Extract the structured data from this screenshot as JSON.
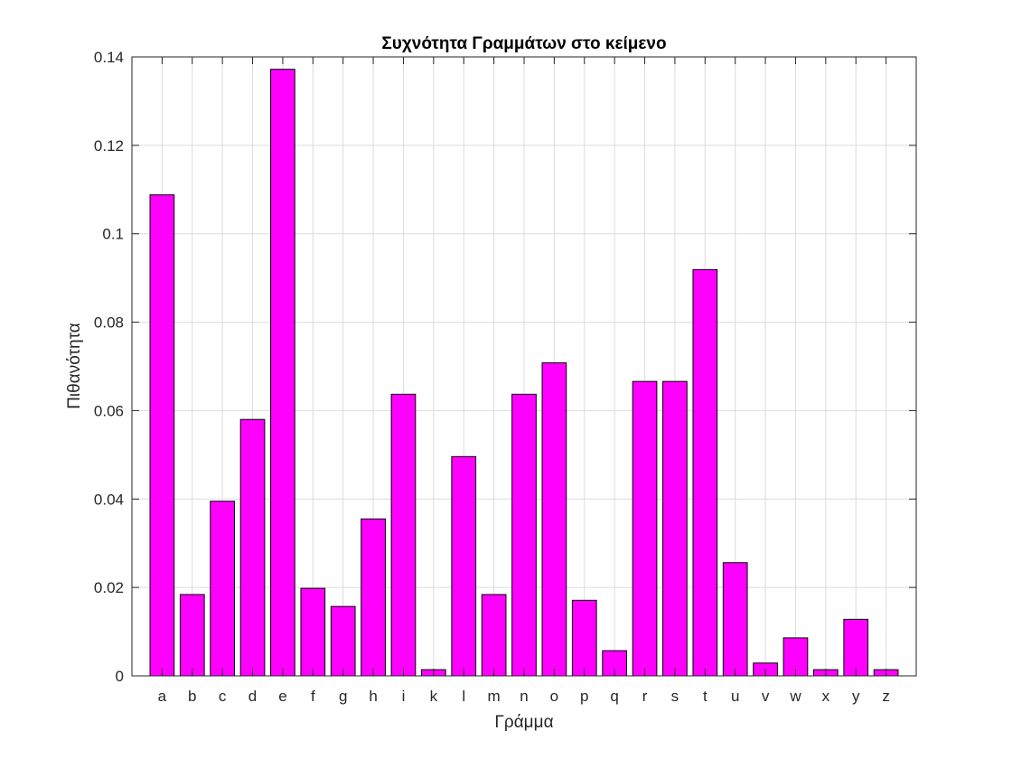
{
  "chart_data": {
    "type": "bar",
    "title": "Συχνότητα Γραμμάτων στο κείμενο",
    "xlabel": "Γράμμα",
    "ylabel": "Πιθανότητα",
    "categories": [
      "a",
      "b",
      "c",
      "d",
      "e",
      "f",
      "g",
      "h",
      "i",
      "k",
      "l",
      "m",
      "n",
      "o",
      "p",
      "q",
      "r",
      "s",
      "t",
      "u",
      "v",
      "w",
      "x",
      "y",
      "z"
    ],
    "values": [
      0.1088,
      0.0184,
      0.0395,
      0.058,
      0.1372,
      0.0198,
      0.0157,
      0.0355,
      0.0637,
      0.0014,
      0.0496,
      0.0184,
      0.0637,
      0.0708,
      0.0171,
      0.0057,
      0.0666,
      0.0666,
      0.0919,
      0.0256,
      0.0029,
      0.0086,
      0.0014,
      0.0128,
      0.0014
    ],
    "ylim": [
      0,
      0.14
    ],
    "yticks": [
      "0",
      "0.02",
      "0.04",
      "0.06",
      "0.08",
      "0.1",
      "0.12",
      "0.14"
    ],
    "grid": true,
    "bar_color": "#ff00ff",
    "edge_color": "#000000"
  }
}
